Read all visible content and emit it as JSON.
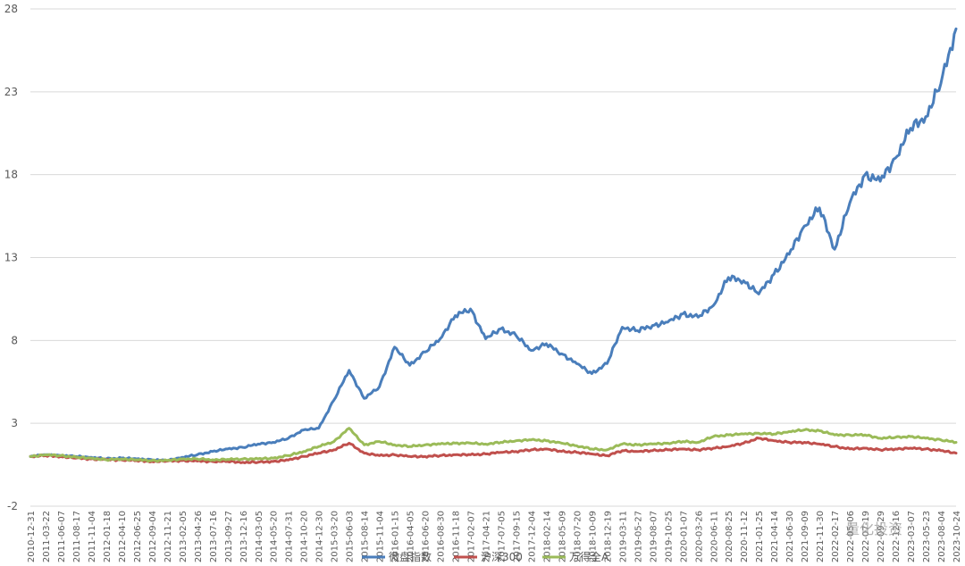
{
  "chart_data": {
    "type": "line",
    "title": "",
    "xlabel": "",
    "ylabel": "",
    "ylim": [
      -2,
      28
    ],
    "y_ticks": [
      -2,
      3,
      8,
      13,
      18,
      23,
      28
    ],
    "grid": "horizontal",
    "legend_position": "bottom",
    "x_tick_labels": [
      "2010-12-31",
      "2011-03-22",
      "2011-06-07",
      "2011-08-17",
      "2011-11-04",
      "2012-01-18",
      "2012-04-10",
      "2012-06-25",
      "2012-09-04",
      "2012-11-21",
      "2013-02-05",
      "2013-04-26",
      "2013-07-16",
      "2013-09-27",
      "2013-12-16",
      "2014-03-05",
      "2014-05-20",
      "2014-07-31",
      "2014-10-20",
      "2014-12-30",
      "2015-03-20",
      "2015-06-03",
      "2015-08-14",
      "2015-11-04",
      "2016-01-15",
      "2016-04-05",
      "2016-06-20",
      "2016-08-30",
      "2016-11-18",
      "2017-02-07",
      "2017-04-21",
      "2017-07-05",
      "2017-09-15",
      "2017-12-04",
      "2018-02-14",
      "2018-05-09",
      "2018-07-20",
      "2018-10-09",
      "2018-12-19",
      "2019-03-11",
      "2019-05-27",
      "2019-08-07",
      "2019-10-25",
      "2020-01-07",
      "2020-03-26",
      "2020-06-11",
      "2020-08-25",
      "2020-11-12",
      "2021-01-25",
      "2021-04-14",
      "2021-06-30",
      "2021-09-09",
      "2021-11-30",
      "2022-02-17",
      "2022-05-06",
      "2022-07-19",
      "2022-09-29",
      "2022-12-16",
      "2023-03-07",
      "2023-05-23",
      "2023-08-04",
      "2023-10-24"
    ],
    "series": [
      {
        "name": "微盘指数",
        "color": "#4A7EBB",
        "values": [
          1.0,
          1.1,
          1.05,
          1.0,
          0.95,
          0.85,
          0.9,
          0.85,
          0.8,
          0.75,
          0.95,
          1.1,
          1.3,
          1.45,
          1.55,
          1.75,
          1.85,
          2.1,
          2.6,
          2.7,
          4.4,
          6.2,
          4.5,
          5.2,
          7.6,
          6.5,
          7.3,
          8.1,
          9.5,
          9.9,
          8.1,
          8.7,
          8.3,
          7.4,
          7.8,
          7.2,
          6.6,
          6.0,
          6.6,
          8.8,
          8.6,
          8.9,
          9.1,
          9.6,
          9.4,
          10.1,
          11.8,
          11.6,
          10.8,
          12.0,
          13.2,
          14.9,
          16.0,
          13.5,
          16.3,
          18.0,
          17.6,
          19.0,
          20.8,
          21.5,
          23.5,
          26.8
        ]
      },
      {
        "name": "沪深300",
        "color": "#C0504D",
        "values": [
          1.0,
          1.05,
          1.0,
          0.9,
          0.85,
          0.8,
          0.8,
          0.75,
          0.7,
          0.72,
          0.75,
          0.72,
          0.7,
          0.7,
          0.65,
          0.65,
          0.7,
          0.78,
          1.0,
          1.2,
          1.4,
          1.8,
          1.2,
          1.05,
          1.1,
          1.0,
          1.0,
          1.05,
          1.1,
          1.1,
          1.15,
          1.25,
          1.3,
          1.4,
          1.45,
          1.3,
          1.25,
          1.15,
          1.05,
          1.35,
          1.3,
          1.35,
          1.4,
          1.45,
          1.4,
          1.5,
          1.6,
          1.8,
          2.1,
          1.95,
          1.85,
          1.85,
          1.75,
          1.6,
          1.45,
          1.5,
          1.4,
          1.45,
          1.5,
          1.45,
          1.35,
          1.2
        ]
      },
      {
        "name": "万得全A",
        "color": "#9BBB59",
        "values": [
          1.0,
          1.1,
          1.05,
          0.95,
          0.9,
          0.8,
          0.85,
          0.8,
          0.75,
          0.75,
          0.85,
          0.85,
          0.8,
          0.82,
          0.85,
          0.85,
          0.9,
          1.05,
          1.3,
          1.6,
          1.9,
          2.7,
          1.7,
          1.9,
          1.7,
          1.6,
          1.7,
          1.75,
          1.8,
          1.8,
          1.75,
          1.85,
          1.95,
          2.0,
          1.95,
          1.8,
          1.65,
          1.45,
          1.4,
          1.75,
          1.7,
          1.75,
          1.8,
          1.9,
          1.85,
          2.2,
          2.3,
          2.35,
          2.4,
          2.35,
          2.5,
          2.6,
          2.55,
          2.3,
          2.3,
          2.3,
          2.1,
          2.15,
          2.2,
          2.1,
          2.0,
          1.85
        ]
      }
    ]
  },
  "watermark": {
    "text": "量化投资"
  }
}
